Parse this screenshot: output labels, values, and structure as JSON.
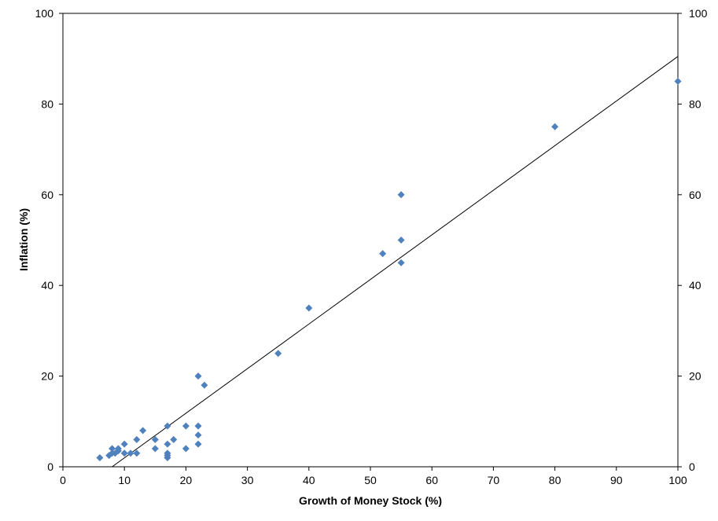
{
  "chart_data": {
    "type": "scatter",
    "xlabel": "Growth of Money Stock (%)",
    "ylabel": "Inflation (%)",
    "xlim": [
      0,
      100
    ],
    "ylim": [
      0,
      100
    ],
    "x_ticks": [
      "0",
      "10",
      "20",
      "30",
      "40",
      "50",
      "60",
      "70",
      "80",
      "90",
      "100"
    ],
    "y_ticks": [
      "0",
      "20",
      "40",
      "60",
      "80",
      "100"
    ],
    "y_ticks_right": [
      "0",
      "20",
      "40",
      "60",
      "80",
      "100"
    ],
    "grid": false,
    "legend": false,
    "marker": "diamond",
    "marker_color": "#4F81BD",
    "trendline": {
      "type": "linear",
      "color": "#000000",
      "from": [
        8,
        0
      ],
      "to": [
        100,
        90.5
      ]
    },
    "points": [
      {
        "x": 6,
        "y": 2
      },
      {
        "x": 7.5,
        "y": 2.5
      },
      {
        "x": 8,
        "y": 3
      },
      {
        "x": 8,
        "y": 4
      },
      {
        "x": 8.5,
        "y": 3
      },
      {
        "x": 9,
        "y": 3.5
      },
      {
        "x": 9,
        "y": 4
      },
      {
        "x": 10,
        "y": 3
      },
      {
        "x": 10,
        "y": 5
      },
      {
        "x": 11,
        "y": 3
      },
      {
        "x": 12,
        "y": 3
      },
      {
        "x": 12,
        "y": 6
      },
      {
        "x": 13,
        "y": 8
      },
      {
        "x": 15,
        "y": 4
      },
      {
        "x": 15,
        "y": 6
      },
      {
        "x": 17,
        "y": 2
      },
      {
        "x": 17,
        "y": 2.5
      },
      {
        "x": 17,
        "y": 3
      },
      {
        "x": 17,
        "y": 5
      },
      {
        "x": 17,
        "y": 9
      },
      {
        "x": 18,
        "y": 6
      },
      {
        "x": 20,
        "y": 4
      },
      {
        "x": 20,
        "y": 9
      },
      {
        "x": 22,
        "y": 5
      },
      {
        "x": 22,
        "y": 7
      },
      {
        "x": 22,
        "y": 9
      },
      {
        "x": 22,
        "y": 20
      },
      {
        "x": 23,
        "y": 18
      },
      {
        "x": 35,
        "y": 25
      },
      {
        "x": 40,
        "y": 35
      },
      {
        "x": 52,
        "y": 47
      },
      {
        "x": 55,
        "y": 45
      },
      {
        "x": 55,
        "y": 50
      },
      {
        "x": 55,
        "y": 60
      },
      {
        "x": 80,
        "y": 75
      },
      {
        "x": 100,
        "y": 85
      }
    ]
  }
}
